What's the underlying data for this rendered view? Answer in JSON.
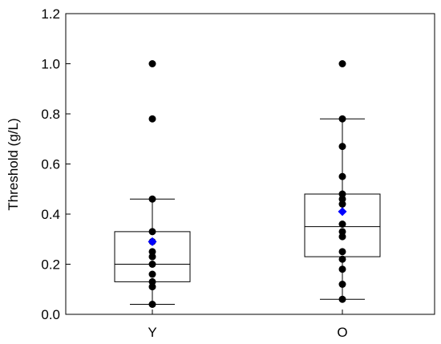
{
  "chart_data": {
    "type": "box",
    "title": "",
    "xlabel": "",
    "ylabel": "Threshold (g/L)",
    "ylim": [
      0,
      1.2
    ],
    "yticks": [
      0.0,
      0.2,
      0.4,
      0.6,
      0.8,
      1.0,
      1.2
    ],
    "ytick_labels": [
      "0.0",
      "0.2",
      "0.4",
      "0.6",
      "0.8",
      "1.0",
      "1.2"
    ],
    "categories": [
      "Y",
      "O"
    ],
    "grid": false,
    "colors": {
      "points": "#000000",
      "mean": "#0000ff",
      "box": "#000000"
    },
    "groups": [
      {
        "name": "Y",
        "whisker_low": 0.04,
        "q1": 0.13,
        "median": 0.2,
        "q3": 0.33,
        "whisker_high": 0.46,
        "mean": 0.29,
        "points": [
          0.04,
          0.11,
          0.13,
          0.16,
          0.2,
          0.23,
          0.25,
          0.29,
          0.33,
          0.46,
          0.78,
          1.0
        ]
      },
      {
        "name": "O",
        "whisker_low": 0.06,
        "q1": 0.23,
        "median": 0.35,
        "q3": 0.48,
        "whisker_high": 0.78,
        "mean": 0.41,
        "points": [
          0.06,
          0.12,
          0.18,
          0.22,
          0.25,
          0.31,
          0.33,
          0.36,
          0.44,
          0.46,
          0.48,
          0.55,
          0.67,
          0.78,
          1.0
        ]
      }
    ]
  }
}
